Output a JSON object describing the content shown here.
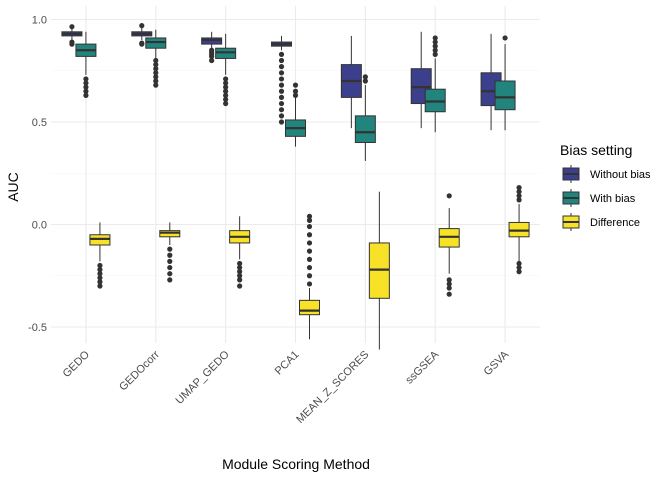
{
  "chart_data": {
    "type": "boxplot",
    "xlabel": "Module Scoring Method",
    "ylabel": "AUC",
    "ylim": [
      -0.65,
      1.03
    ],
    "yticks": [
      -0.5,
      0.0,
      0.5,
      1.0
    ],
    "ytick_labels": [
      "-0.5",
      "0.0",
      "0.5",
      "1.0"
    ],
    "grid": true,
    "legend": {
      "title": "Bias setting",
      "placement": "right"
    },
    "categories": [
      "GEDO",
      "GEDOcorr",
      "UMAP_GEDO",
      "PCA1",
      "MEAN_Z_SCORES",
      "ssGSEA",
      "GSVA"
    ],
    "series": [
      {
        "name": "Without bias",
        "color": "#3b3f8c",
        "boxes": [
          {
            "q1": 0.92,
            "median": 0.93,
            "q3": 0.94,
            "whisker_low": 0.9,
            "whisker_high": 0.96,
            "outliers": [
              0.88,
              0.89,
              0.965
            ]
          },
          {
            "q1": 0.92,
            "median": 0.93,
            "q3": 0.94,
            "whisker_low": 0.9,
            "whisker_high": 0.96,
            "outliers": [
              0.88,
              0.885,
              0.97
            ]
          },
          {
            "q1": 0.88,
            "median": 0.9,
            "q3": 0.91,
            "whisker_low": 0.86,
            "whisker_high": 0.94,
            "outliers": [
              0.8,
              0.82,
              0.83,
              0.84,
              0.85
            ]
          },
          {
            "q1": 0.87,
            "median": 0.88,
            "q3": 0.89,
            "whisker_low": 0.85,
            "whisker_high": 0.92,
            "outliers": [
              0.5,
              0.53,
              0.56,
              0.59,
              0.62,
              0.65,
              0.68,
              0.71,
              0.74,
              0.77,
              0.8,
              0.83
            ]
          },
          {
            "q1": 0.62,
            "median": 0.7,
            "q3": 0.78,
            "whisker_low": 0.47,
            "whisker_high": 0.92,
            "outliers": []
          },
          {
            "q1": 0.59,
            "median": 0.67,
            "q3": 0.76,
            "whisker_low": 0.47,
            "whisker_high": 0.94,
            "outliers": []
          },
          {
            "q1": 0.58,
            "median": 0.65,
            "q3": 0.74,
            "whisker_low": 0.46,
            "whisker_high": 0.93,
            "outliers": []
          }
        ]
      },
      {
        "name": "With bias",
        "color": "#21847d",
        "boxes": [
          {
            "q1": 0.82,
            "median": 0.85,
            "q3": 0.88,
            "whisker_low": 0.73,
            "whisker_high": 0.94,
            "outliers": [
              0.63,
              0.65,
              0.67,
              0.69,
              0.71
            ]
          },
          {
            "q1": 0.86,
            "median": 0.89,
            "q3": 0.91,
            "whisker_low": 0.81,
            "whisker_high": 0.95,
            "outliers": [
              0.68,
              0.7,
              0.72,
              0.74,
              0.76,
              0.78,
              0.8
            ]
          },
          {
            "q1": 0.81,
            "median": 0.84,
            "q3": 0.86,
            "whisker_low": 0.73,
            "whisker_high": 0.93,
            "outliers": [
              0.59,
              0.61,
              0.63,
              0.65,
              0.67,
              0.69,
              0.71
            ]
          },
          {
            "q1": 0.43,
            "median": 0.47,
            "q3": 0.51,
            "whisker_low": 0.38,
            "whisker_high": 0.62,
            "outliers": [
              0.63,
              0.65,
              0.68
            ]
          },
          {
            "q1": 0.4,
            "median": 0.45,
            "q3": 0.53,
            "whisker_low": 0.31,
            "whisker_high": 0.68,
            "outliers": [
              0.7,
              0.72
            ]
          },
          {
            "q1": 0.55,
            "median": 0.6,
            "q3": 0.66,
            "whisker_low": 0.45,
            "whisker_high": 0.81,
            "outliers": [
              0.83,
              0.85,
              0.87,
              0.89,
              0.91
            ]
          },
          {
            "q1": 0.56,
            "median": 0.62,
            "q3": 0.7,
            "whisker_low": 0.46,
            "whisker_high": 0.88,
            "outliers": [
              0.91
            ]
          }
        ]
      },
      {
        "name": "Difference",
        "color": "#f7e227",
        "boxes": [
          {
            "q1": -0.1,
            "median": -0.07,
            "q3": -0.05,
            "whisker_low": -0.18,
            "whisker_high": 0.01,
            "outliers": [
              -0.2,
              -0.22,
              -0.24,
              -0.26,
              -0.28,
              -0.3
            ]
          },
          {
            "q1": -0.06,
            "median": -0.04,
            "q3": -0.03,
            "whisker_low": -0.1,
            "whisker_high": 0.01,
            "outliers": [
              -0.12,
              -0.15,
              -0.18,
              -0.21,
              -0.24,
              -0.27
            ]
          },
          {
            "q1": -0.09,
            "median": -0.06,
            "q3": -0.03,
            "whisker_low": -0.17,
            "whisker_high": 0.04,
            "outliers": [
              -0.19,
              -0.21,
              -0.23,
              -0.25,
              -0.27,
              -0.3
            ]
          },
          {
            "q1": -0.44,
            "median": -0.42,
            "q3": -0.37,
            "whisker_low": -0.56,
            "whisker_high": -0.31,
            "outliers": [
              -0.29,
              -0.25,
              -0.21,
              -0.17,
              -0.13,
              -0.09,
              -0.05,
              -0.01,
              0.02,
              0.04
            ]
          },
          {
            "q1": -0.36,
            "median": -0.22,
            "q3": -0.09,
            "whisker_low": -0.61,
            "whisker_high": 0.16,
            "outliers": []
          },
          {
            "q1": -0.11,
            "median": -0.06,
            "q3": -0.02,
            "whisker_low": -0.24,
            "whisker_high": 0.08,
            "outliers": [
              -0.27,
              -0.29,
              -0.31,
              -0.34,
              0.14
            ]
          },
          {
            "q1": -0.06,
            "median": -0.03,
            "q3": 0.01,
            "whisker_low": -0.18,
            "whisker_high": 0.1,
            "outliers": [
              -0.19,
              -0.21,
              -0.23,
              0.12,
              0.14,
              0.16,
              0.18
            ]
          }
        ]
      }
    ]
  }
}
